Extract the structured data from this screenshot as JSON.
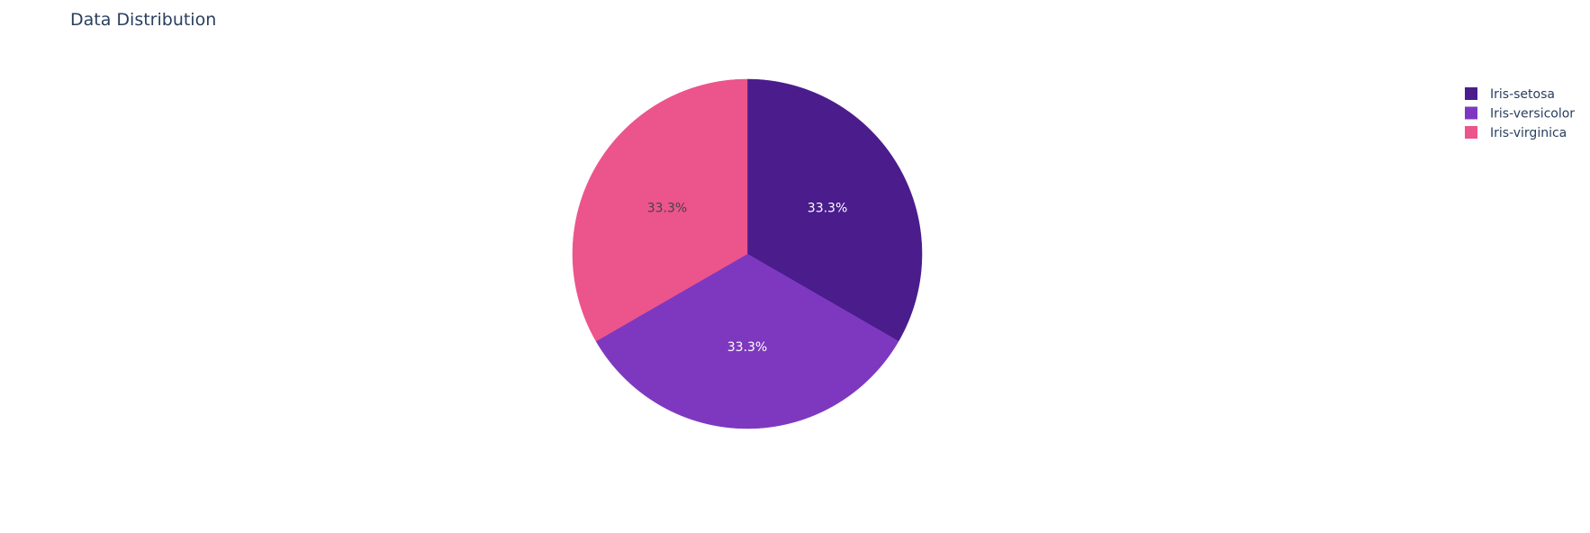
{
  "chart_data": {
    "type": "pie",
    "title": "Data Distribution",
    "categories": [
      "Iris-setosa",
      "Iris-versicolor",
      "Iris-virginica"
    ],
    "values": [
      50,
      50,
      50
    ],
    "percent_labels": [
      "33.3%",
      "33.3%",
      "33.3%"
    ],
    "colors": [
      "#4a1c8c",
      "#7e38bf",
      "#ec548c"
    ],
    "label_colors": [
      "#ffffff",
      "#ffffff",
      "#444444"
    ],
    "legend": {
      "placement": "top-right",
      "entries": [
        "Iris-setosa",
        "Iris-versicolor",
        "Iris-virginica"
      ]
    },
    "start_angle_deg": 0,
    "direction": "clockwise"
  }
}
